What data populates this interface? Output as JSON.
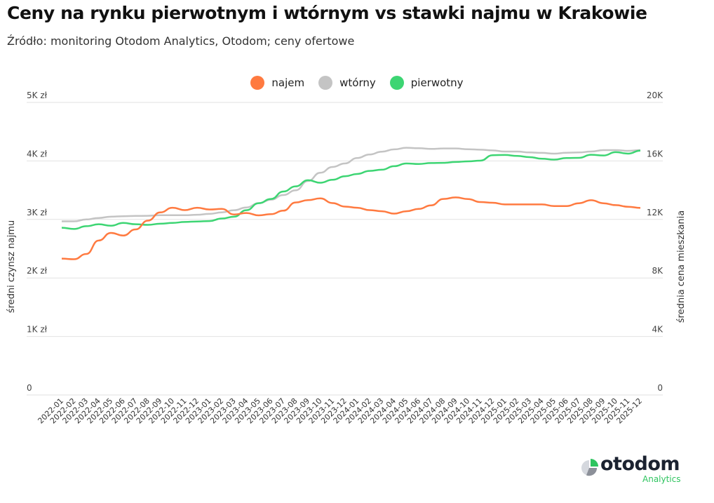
{
  "chart_data": {
    "type": "line",
    "title": "Ceny na rynku pierwotnym i wtórnym vs stawki najmu w Krakowie",
    "subtitle": "Źródło: monitoring Otodom Analytics, Otodom; ceny ofertowe",
    "ylabel_left": "średni czynsz najmu",
    "ylabel_right": "średnia cena mieszkania",
    "ylim_left": [
      0,
      5000
    ],
    "ylim_right": [
      0,
      20000
    ],
    "yticks_left": [
      "0",
      "1K zł",
      "2K zł",
      "3K zł",
      "4K zł",
      "5K zł"
    ],
    "yticks_right": [
      "0",
      "4K",
      "8K",
      "12K",
      "16K",
      "20K"
    ],
    "legend_position": "top-center",
    "grid": true,
    "x": [
      "2022-01",
      "2022-02",
      "2022-03",
      "2022-04",
      "2022-05",
      "2022-06",
      "2022-07",
      "2022-08",
      "2022-09",
      "2022-10",
      "2022-11",
      "2022-12",
      "2023-01",
      "2023-02",
      "2023-03",
      "2023-04",
      "2023-05",
      "2023-06",
      "2023-07",
      "2023-08",
      "2023-09",
      "2023-10",
      "2023-11",
      "2023-12",
      "2024-01",
      "2024-02",
      "2024-03",
      "2024-04",
      "2024-05",
      "2024-06",
      "2024-07",
      "2024-08",
      "2024-09",
      "2024-10",
      "2024-11",
      "2024-12",
      "2025-01",
      "2025-02",
      "2025-03",
      "2025-04",
      "2025-05",
      "2025-06",
      "2025-07",
      "2025-08",
      "2025-09",
      "2025-10",
      "2025-11",
      "2025-12"
    ],
    "series": [
      {
        "name": "najem",
        "axis": "left",
        "color": "#ff7a40",
        "values": [
          2330,
          2320,
          2410,
          2640,
          2770,
          2725,
          2830,
          2980,
          3120,
          3200,
          3160,
          3200,
          3170,
          3180,
          3085,
          3110,
          3070,
          3090,
          3150,
          3290,
          3330,
          3360,
          3280,
          3220,
          3200,
          3160,
          3140,
          3100,
          3140,
          3180,
          3240,
          3350,
          3377,
          3349,
          3297,
          3285,
          3257,
          3257,
          3257,
          3257,
          3229,
          3229,
          3277,
          3329,
          3277,
          3245,
          3217,
          3197
        ]
      },
      {
        "name": "wtórny",
        "axis": "right",
        "color": "#c4c4c4",
        "values": [
          11870,
          11870,
          12000,
          12100,
          12190,
          12220,
          12240,
          12250,
          12290,
          12290,
          12290,
          12320,
          12380,
          12480,
          12630,
          12820,
          13110,
          13350,
          13670,
          13990,
          14630,
          15190,
          15590,
          15830,
          16200,
          16440,
          16630,
          16790,
          16900,
          16870,
          16820,
          16850,
          16850,
          16800,
          16770,
          16720,
          16640,
          16640,
          16580,
          16550,
          16500,
          16560,
          16580,
          16640,
          16740,
          16740,
          16690,
          16740
        ]
      },
      {
        "name": "pierwotny",
        "axis": "right",
        "color": "#3dd573",
        "values": [
          11430,
          11350,
          11540,
          11670,
          11570,
          11760,
          11670,
          11630,
          11710,
          11760,
          11830,
          11860,
          11890,
          12060,
          12190,
          12630,
          13110,
          13400,
          13910,
          14260,
          14680,
          14510,
          14710,
          14950,
          15110,
          15320,
          15400,
          15640,
          15830,
          15790,
          15860,
          15870,
          15930,
          15970,
          16020,
          16390,
          16410,
          16340,
          16260,
          16150,
          16090,
          16200,
          16210,
          16420,
          16370,
          16600,
          16500,
          16700
        ]
      }
    ]
  },
  "logo": {
    "name": "otodom",
    "sub": "Analytics"
  }
}
